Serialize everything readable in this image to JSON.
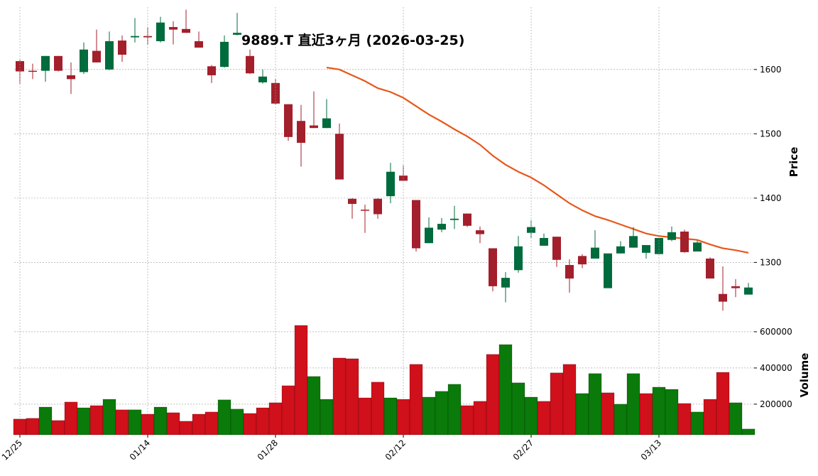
{
  "chart_data": [
    {
      "type": "candlestick",
      "title": "9889.T  直近3ヶ月  (2026-03-25)",
      "ylabel": "Price",
      "ylim": [
        1222,
        1697
      ],
      "yticks": [
        1300,
        1400,
        1500,
        1600
      ],
      "grid": true,
      "up_color": "#006b3c",
      "down_color": "#a31f2b",
      "open": [
        1613,
        1598,
        1598,
        1621,
        1591,
        1596,
        1629,
        1600,
        1645,
        1650,
        1652,
        1644,
        1666,
        1663,
        1644,
        1605,
        1604,
        1654,
        1621,
        1580,
        1579,
        1546,
        1520,
        1513,
        1509,
        1500,
        1399,
        1382,
        1399,
        1403,
        1435,
        1397,
        1330,
        1351,
        1366,
        1376,
        1350,
        1322,
        1261,
        1288,
        1346,
        1326,
        1340,
        1296,
        1310,
        1306,
        1260,
        1314,
        1323,
        1315,
        1313,
        1335,
        1348,
        1317,
        1306,
        1251,
        1263,
        1250
      ],
      "high": [
        1615,
        1609,
        1621,
        1621,
        1611,
        1642,
        1662,
        1659,
        1653,
        1680,
        1666,
        1682,
        1675,
        1693,
        1659,
        1607,
        1653,
        1688,
        1631,
        1600,
        1585,
        1546,
        1545,
        1566,
        1554,
        1516,
        1400,
        1390,
        1400,
        1455,
        1451,
        1397,
        1370,
        1369,
        1388,
        1376,
        1356,
        1322,
        1285,
        1341,
        1366,
        1345,
        1340,
        1305,
        1313,
        1350,
        1314,
        1333,
        1355,
        1327,
        1338,
        1356,
        1351,
        1334,
        1308,
        1294,
        1274,
        1268
      ],
      "low": [
        1578,
        1585,
        1581,
        1597,
        1562,
        1593,
        1611,
        1599,
        1612,
        1642,
        1639,
        1642,
        1639,
        1657,
        1634,
        1579,
        1603,
        1653,
        1593,
        1578,
        1545,
        1489,
        1449,
        1509,
        1509,
        1429,
        1368,
        1346,
        1368,
        1392,
        1427,
        1317,
        1330,
        1347,
        1352,
        1355,
        1330,
        1255,
        1238,
        1284,
        1338,
        1326,
        1293,
        1253,
        1291,
        1306,
        1260,
        1314,
        1323,
        1306,
        1313,
        1333,
        1315,
        1317,
        1275,
        1225,
        1246,
        1250
      ],
      "close": [
        1597,
        1597,
        1621,
        1598,
        1585,
        1631,
        1611,
        1644,
        1623,
        1652,
        1650,
        1673,
        1662,
        1657,
        1634,
        1591,
        1643,
        1657,
        1594,
        1589,
        1547,
        1495,
        1486,
        1509,
        1524,
        1429,
        1391,
        1381,
        1375,
        1441,
        1427,
        1322,
        1354,
        1360,
        1368,
        1357,
        1344,
        1263,
        1276,
        1325,
        1355,
        1338,
        1304,
        1275,
        1297,
        1323,
        1314,
        1325,
        1341,
        1327,
        1338,
        1347,
        1316,
        1331,
        1275,
        1239,
        1260,
        1261
      ],
      "series": [
        {
          "color": "#e8571a",
          "values": [
            null,
            null,
            null,
            null,
            null,
            null,
            null,
            null,
            null,
            null,
            null,
            null,
            null,
            null,
            null,
            null,
            null,
            null,
            null,
            null,
            null,
            null,
            null,
            null,
            1603,
            1600,
            1591,
            1582,
            1571,
            1565,
            1556,
            1543,
            1530,
            1519,
            1507,
            1496,
            1483,
            1466,
            1452,
            1441,
            1432,
            1420,
            1406,
            1392,
            1381,
            1372,
            1366,
            1359,
            1352,
            1345,
            1341,
            1339,
            1337,
            1335,
            1328,
            1322,
            1319,
            1315
          ]
        }
      ]
    },
    {
      "type": "bar",
      "ylabel": "Volume",
      "ylim": [
        31000,
        694000
      ],
      "yticks": [
        200000,
        400000,
        600000
      ],
      "grid": true,
      "categories": [
        "12/25",
        null,
        null,
        null,
        null,
        null,
        null,
        null,
        null,
        null,
        "01/14",
        null,
        null,
        null,
        null,
        null,
        null,
        null,
        null,
        null,
        "01/28",
        null,
        null,
        null,
        null,
        null,
        null,
        null,
        null,
        null,
        "02/12",
        null,
        null,
        null,
        null,
        null,
        null,
        null,
        null,
        null,
        "02/27",
        null,
        null,
        null,
        null,
        null,
        null,
        null,
        null,
        null,
        "03/13",
        null,
        null,
        null,
        null,
        null,
        null,
        null
      ],
      "values": [
        118000,
        122000,
        184000,
        110000,
        212000,
        180000,
        192000,
        227000,
        169000,
        169000,
        145000,
        184000,
        153000,
        106000,
        145000,
        157000,
        224000,
        173000,
        149000,
        180000,
        208000,
        302000,
        635000,
        353000,
        227000,
        455000,
        451000,
        235000,
        322000,
        235000,
        227000,
        420000,
        239000,
        271000,
        310000,
        192000,
        216000,
        475000,
        529000,
        318000,
        239000,
        216000,
        373000,
        420000,
        259000,
        369000,
        263000,
        200000,
        369000,
        259000,
        294000,
        282000,
        204000,
        157000,
        227000,
        376000,
        208000,
        63000
      ],
      "colors": [
        "#d0101b",
        "#d0101b",
        "#0a7a0a",
        "#d0101b",
        "#d0101b",
        "#0a7a0a",
        "#d0101b",
        "#0a7a0a",
        "#d0101b",
        "#0a7a0a",
        "#d0101b",
        "#0a7a0a",
        "#d0101b",
        "#d0101b",
        "#d0101b",
        "#d0101b",
        "#0a7a0a",
        "#0a7a0a",
        "#d0101b",
        "#d0101b",
        "#d0101b",
        "#d0101b",
        "#d0101b",
        "#0a7a0a",
        "#0a7a0a",
        "#d0101b",
        "#d0101b",
        "#d0101b",
        "#d0101b",
        "#0a7a0a",
        "#d0101b",
        "#d0101b",
        "#0a7a0a",
        "#0a7a0a",
        "#0a7a0a",
        "#d0101b",
        "#d0101b",
        "#d0101b",
        "#0a7a0a",
        "#0a7a0a",
        "#0a7a0a",
        "#d0101b",
        "#d0101b",
        "#d0101b",
        "#0a7a0a",
        "#0a7a0a",
        "#d0101b",
        "#0a7a0a",
        "#0a7a0a",
        "#d0101b",
        "#0a7a0a",
        "#0a7a0a",
        "#d0101b",
        "#0a7a0a",
        "#d0101b",
        "#d0101b",
        "#0a7a0a",
        "#0a7a0a"
      ]
    }
  ]
}
